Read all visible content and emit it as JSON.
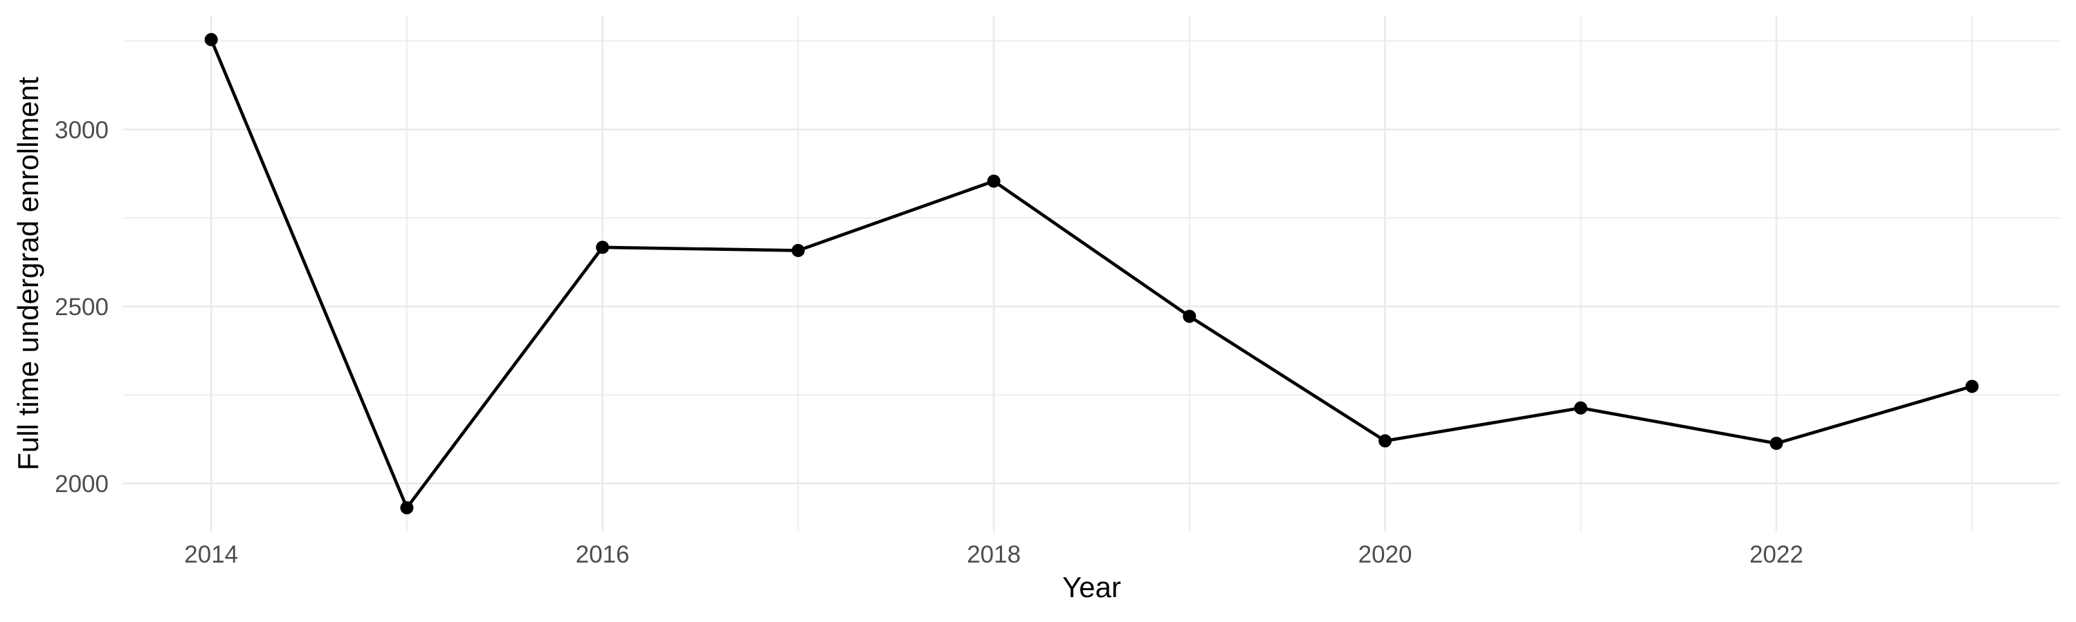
{
  "chart_data": {
    "type": "line",
    "title": "",
    "xlabel": "Year",
    "ylabel": "Full time undergrad enrollment",
    "series": [
      {
        "name": "Full time undergrad enrollment",
        "x": [
          2014,
          2015,
          2016,
          2017,
          2018,
          2019,
          2020,
          2021,
          2022,
          2023
        ],
        "values": [
          3254,
          1931,
          2667,
          2658,
          2854,
          2472,
          2120,
          2213,
          2113,
          2274
        ]
      }
    ],
    "x_major_ticks": [
      2014,
      2016,
      2018,
      2020,
      2022
    ],
    "x_minor_ticks": [
      2015,
      2017,
      2019,
      2021,
      2023
    ],
    "x_tick_labels": [
      "2014",
      "2016",
      "2018",
      "2020",
      "2022"
    ],
    "y_major_ticks": [
      2000,
      2500,
      3000
    ],
    "y_minor_ticks": [
      2250,
      2750,
      3250
    ],
    "y_tick_labels": [
      "2000",
      "2500",
      "3000"
    ],
    "x_domain": [
      2013.55,
      2023.45
    ],
    "y_domain": [
      1864,
      3321
    ],
    "grid": "on",
    "legend_position": "none",
    "marker": "filled-circle",
    "colors": {
      "line": "#000000",
      "point": "#000000",
      "grid_major": "#ebebeb",
      "grid_minor": "#ebebeb",
      "tick_text": "#4d4d4d",
      "axis_title_text": "#000000",
      "background": "#ffffff"
    }
  }
}
